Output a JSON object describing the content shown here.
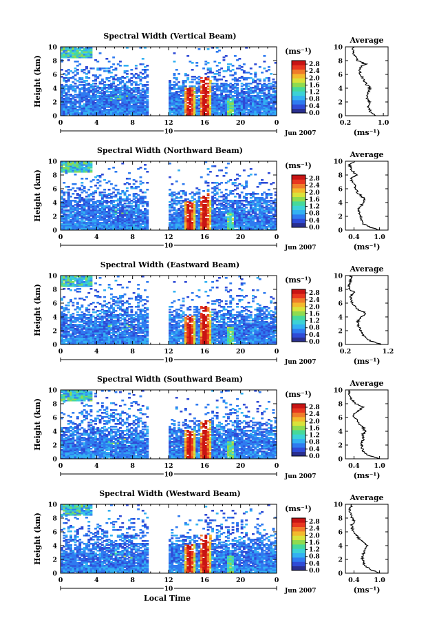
{
  "figure": {
    "xlabel": "Local Time",
    "date_label": "Jun 2007",
    "day_label": "10",
    "ylabel": "Height (km)",
    "colorbar_unit": "(ms⁻¹)",
    "avg_title": "Average",
    "avg_xlabel": "(ms⁻¹)"
  },
  "colors": {
    "colormap": [
      "#2a2f8f",
      "#2f4bd6",
      "#2f7bf0",
      "#33b1f2",
      "#3cd2d6",
      "#46d99a",
      "#8fdb4f",
      "#d9e23a",
      "#f3b92d",
      "#f07c2a",
      "#e8361f",
      "#c81414"
    ]
  },
  "chart_data": [
    {
      "type": "heatmap",
      "title": "Spectral Width (Vertical Beam)",
      "x_ticks": [
        "0",
        "4",
        "8",
        "12",
        "16",
        "20",
        "0"
      ],
      "y_ticks": [
        "0",
        "2",
        "4",
        "6",
        "8",
        "10"
      ],
      "xlim": [
        0,
        24
      ],
      "ylim": [
        0,
        10
      ],
      "data_gap_hours": [
        9.7,
        12
      ],
      "color_levels": [
        "0.0",
        "0.4",
        "0.8",
        "1.2",
        "1.6",
        "2.0",
        "2.4",
        "2.8"
      ],
      "color_range": [
        0,
        3
      ],
      "average_profile": {
        "type": "line",
        "x_ticks": [
          "0.2",
          "1.0"
        ],
        "xlim": [
          0.2,
          1.1
        ],
        "y_ticks": [
          "0",
          "2",
          "4",
          "6",
          "8",
          "10"
        ],
        "ylim": [
          0,
          10
        ],
        "height": [
          0,
          0.5,
          1,
          1.5,
          2,
          2.5,
          3,
          3.5,
          4,
          4.5,
          5,
          5.5,
          6,
          6.5,
          7,
          7.5,
          8,
          8.5,
          9,
          9.5,
          10
        ],
        "width": [
          0.85,
          0.74,
          0.7,
          0.68,
          0.7,
          0.67,
          0.66,
          0.68,
          0.72,
          0.65,
          0.6,
          0.55,
          0.52,
          0.5,
          0.5,
          0.62,
          0.45,
          0.42,
          0.38,
          0.36,
          0.35
        ]
      }
    },
    {
      "type": "heatmap",
      "title": "Spectral Width (Northward Beam)",
      "x_ticks": [
        "0",
        "4",
        "8",
        "12",
        "16",
        "20",
        "0"
      ],
      "y_ticks": [
        "0",
        "2",
        "4",
        "6",
        "8",
        "10"
      ],
      "xlim": [
        0,
        24
      ],
      "ylim": [
        0,
        10
      ],
      "data_gap_hours": [
        9.7,
        12
      ],
      "color_levels": [
        "0.0",
        "0.4",
        "0.8",
        "1.2",
        "1.6",
        "2.0",
        "2.4",
        "2.8"
      ],
      "color_range": [
        0,
        3
      ],
      "average_profile": {
        "type": "line",
        "x_ticks": [
          "0.4",
          "1.0"
        ],
        "xlim": [
          0.2,
          1.2
        ],
        "y_ticks": [
          "0",
          "2",
          "4",
          "6",
          "8",
          "10"
        ],
        "ylim": [
          0,
          10
        ],
        "height": [
          0,
          0.5,
          1,
          1.5,
          2,
          2.5,
          3,
          3.5,
          4,
          4.5,
          5,
          5.5,
          6,
          6.5,
          7,
          7.5,
          8,
          8.5,
          9,
          9.5,
          10
        ],
        "width": [
          1.0,
          0.75,
          0.6,
          0.58,
          0.55,
          0.52,
          0.5,
          0.56,
          0.62,
          0.66,
          0.56,
          0.48,
          0.44,
          0.42,
          0.36,
          0.32,
          0.45,
          0.38,
          0.32,
          0.3,
          0.4
        ]
      }
    },
    {
      "type": "heatmap",
      "title": "Spectral Width (Eastward Beam)",
      "x_ticks": [
        "0",
        "4",
        "8",
        "12",
        "16",
        "20",
        "0"
      ],
      "y_ticks": [
        "0",
        "2",
        "4",
        "6",
        "8",
        "10"
      ],
      "xlim": [
        0,
        24
      ],
      "ylim": [
        0,
        10
      ],
      "data_gap_hours": [
        9.7,
        12
      ],
      "color_levels": [
        "0.0",
        "0.4",
        "0.8",
        "1.2",
        "1.6",
        "2.0",
        "2.4",
        "2.8"
      ],
      "color_range": [
        0,
        3
      ],
      "average_profile": {
        "type": "line",
        "x_ticks": [
          "0.2",
          "1.2"
        ],
        "xlim": [
          0.2,
          1.2
        ],
        "y_ticks": [
          "0",
          "2",
          "4",
          "6",
          "8",
          "10"
        ],
        "ylim": [
          0,
          10
        ],
        "height": [
          0,
          0.5,
          1,
          1.5,
          2,
          2.5,
          3,
          3.5,
          4,
          4.5,
          5,
          5.5,
          6,
          6.5,
          7,
          7.5,
          8,
          8.5,
          9,
          9.5,
          10
        ],
        "width": [
          1.05,
          0.8,
          0.65,
          0.6,
          0.56,
          0.52,
          0.48,
          0.5,
          0.58,
          0.7,
          0.52,
          0.42,
          0.36,
          0.34,
          0.32,
          0.42,
          0.3,
          0.28,
          0.3,
          0.34,
          0.32
        ]
      }
    },
    {
      "type": "heatmap",
      "title": "Spectral Width (Southward Beam)",
      "x_ticks": [
        "0",
        "4",
        "8",
        "12",
        "16",
        "20",
        "0"
      ],
      "y_ticks": [
        "0",
        "2",
        "4",
        "6",
        "8",
        "10"
      ],
      "xlim": [
        0,
        24
      ],
      "ylim": [
        0,
        10
      ],
      "data_gap_hours": [
        9.7,
        12
      ],
      "color_levels": [
        "0.0",
        "0.4",
        "0.8",
        "1.2",
        "1.6",
        "2.0",
        "2.4",
        "2.8"
      ],
      "color_range": [
        0,
        3
      ],
      "average_profile": {
        "type": "line",
        "x_ticks": [
          "0.4",
          "1.0"
        ],
        "xlim": [
          0.2,
          1.2
        ],
        "y_ticks": [
          "0",
          "2",
          "4",
          "6",
          "8",
          "10"
        ],
        "ylim": [
          0,
          10
        ],
        "height": [
          0,
          0.5,
          1,
          1.5,
          2,
          2.5,
          3,
          3.5,
          4,
          4.5,
          5,
          5.5,
          6,
          6.5,
          7,
          7.5,
          8,
          8.5,
          9,
          9.5,
          10
        ],
        "width": [
          1.0,
          0.75,
          0.62,
          0.6,
          0.58,
          0.6,
          0.62,
          0.6,
          0.66,
          0.62,
          0.54,
          0.48,
          0.42,
          0.38,
          0.5,
          0.62,
          0.44,
          0.36,
          0.32,
          0.28,
          0.3
        ]
      }
    },
    {
      "type": "heatmap",
      "title": "Spectral Width (Westward Beam)",
      "x_ticks": [
        "0",
        "4",
        "8",
        "12",
        "16",
        "20",
        "0"
      ],
      "y_ticks": [
        "0",
        "2",
        "4",
        "6",
        "8",
        "10"
      ],
      "xlim": [
        0,
        24
      ],
      "ylim": [
        0,
        10
      ],
      "data_gap_hours": [
        9.7,
        12
      ],
      "color_levels": [
        "0.0",
        "0.4",
        "0.8",
        "1.2",
        "1.6",
        "2.0",
        "2.4",
        "2.8"
      ],
      "color_range": [
        0,
        3
      ],
      "average_profile": {
        "type": "line",
        "x_ticks": [
          "0.4",
          "1.0"
        ],
        "xlim": [
          0.2,
          1.2
        ],
        "y_ticks": [
          "0",
          "2",
          "4",
          "6",
          "8",
          "10"
        ],
        "ylim": [
          0,
          10
        ],
        "height": [
          0,
          0.5,
          1,
          1.5,
          2,
          2.5,
          3,
          3.5,
          4,
          4.5,
          5,
          5.5,
          6,
          6.5,
          7,
          7.5,
          8,
          8.5,
          9,
          9.5,
          10
        ],
        "width": [
          1.0,
          0.8,
          0.66,
          0.62,
          0.6,
          0.6,
          0.64,
          0.66,
          0.72,
          0.6,
          0.52,
          0.46,
          0.4,
          0.36,
          0.34,
          0.42,
          0.36,
          0.32,
          0.3,
          0.32,
          0.34
        ]
      }
    }
  ]
}
